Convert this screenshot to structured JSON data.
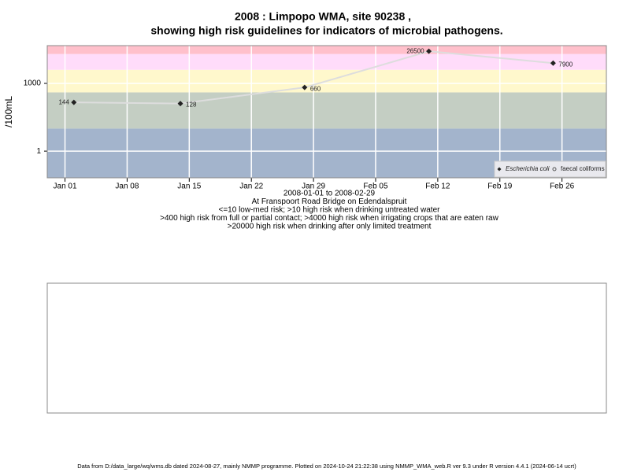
{
  "chart_data": {
    "type": "line",
    "title": "2008 : Limpopo WMA, site 90238 ,",
    "subtitle": "showing high risk guidelines for indicators of microbial pathogens.",
    "y_label": "/100mL",
    "x_notes": [
      "2008-01-01 to 2008-02-29",
      "At Franspoort Road Bridge on Edendalspruit",
      "<=10 low-med risk; >10 high risk when drinking untreated water",
      ">400 high risk from full or partial contact; >4000 high risk when irrigating crops that are eaten raw",
      ">20000 high risk when drinking after only limited treatment"
    ],
    "x": [
      "2008-01-02",
      "2008-01-14",
      "2008-01-28",
      "2008-02-11",
      "2008-02-25"
    ],
    "series": [
      {
        "name": "Escherichia coli",
        "color": "#222222",
        "line_color": "#dddddd",
        "values": [
          144,
          128,
          660,
          26500,
          7900
        ]
      },
      {
        "name": "faecal coliforms",
        "color": "#555555",
        "values": [
          null,
          null,
          null,
          null,
          null
        ]
      }
    ],
    "log_y": true,
    "ylim": [
      0.066,
      47000
    ],
    "yticks": [
      1,
      1000
    ],
    "xlim": [
      "2007-12-30",
      "2008-03-02"
    ],
    "xticks": [
      {
        "value": "2008-01-01",
        "label": "Jan 01"
      },
      {
        "value": "2008-01-08",
        "label": "Jan 08"
      },
      {
        "value": "2008-01-15",
        "label": "Jan 15"
      },
      {
        "value": "2008-01-22",
        "label": "Jan 22"
      },
      {
        "value": "2008-01-29",
        "label": "Jan 29"
      },
      {
        "value": "2008-02-05",
        "label": "Feb 05"
      },
      {
        "value": "2008-02-12",
        "label": "Feb 12"
      },
      {
        "value": "2008-02-19",
        "label": "Feb 19"
      },
      {
        "value": "2008-02-26",
        "label": "Feb 26"
      }
    ],
    "thresholds": [
      10,
      400,
      4000,
      20000
    ],
    "band_colors": [
      "#a3b4cc",
      "#c4cec3",
      "#fff8cc",
      "#ffdcfa",
      "#ffc0cb"
    ],
    "grid": true,
    "legend": "bottom-right",
    "footer": "Data from D:/data_large/wq/wms.db dated 2024-08-27, mainly NMMP programme. Plotted on 2024-10-24 21:22:38 using NMMP_WMA_web.R ver 9.3 under R version 4.4.1 (2024-06-14 ucrt)"
  }
}
